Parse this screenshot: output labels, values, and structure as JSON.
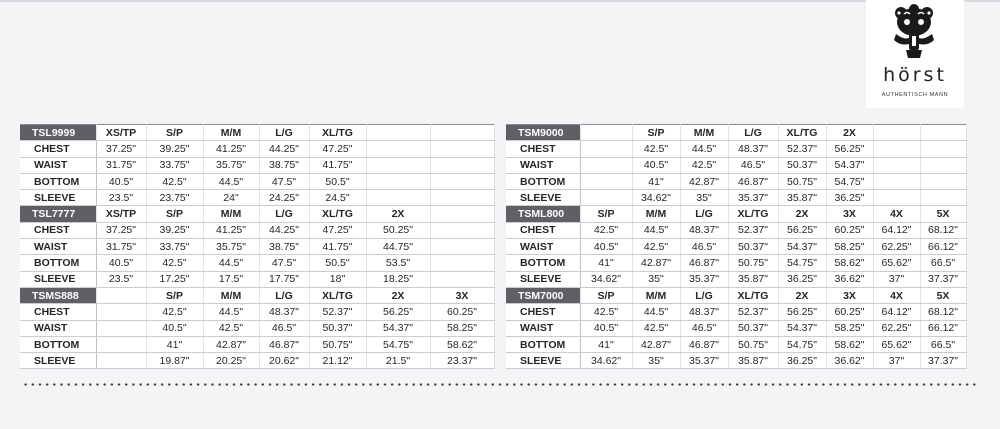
{
  "brand": {
    "name": "hörst",
    "tagline": "AUTHENTISCH MANN",
    "logo_icon": "ornamental-crest-icon"
  },
  "left_table": [
    {
      "model": "TSL9999",
      "sizes": [
        "XS/TP",
        "S/P",
        "M/M",
        "L/G",
        "XL/TG",
        "",
        ""
      ],
      "rows": [
        {
          "label": "CHEST",
          "values": [
            "37.25\"",
            "39.25\"",
            "41.25\"",
            "44.25\"",
            "47.25\"",
            "",
            ""
          ]
        },
        {
          "label": "WAIST",
          "values": [
            "31.75\"",
            "33.75\"",
            "35.75\"",
            "38.75\"",
            "41.75\"",
            "",
            ""
          ]
        },
        {
          "label": "BOTTOM",
          "values": [
            "40.5\"",
            "42.5\"",
            "44.5\"",
            "47.5\"",
            "50.5\"",
            "",
            ""
          ]
        },
        {
          "label": "SLEEVE",
          "values": [
            "23.5\"",
            "23.75\"",
            "24\"",
            "24.25\"",
            "24.5\"",
            "",
            ""
          ]
        }
      ]
    },
    {
      "model": "TSL7777",
      "sizes": [
        "XS/TP",
        "S/P",
        "M/M",
        "L/G",
        "XL/TG",
        "2X",
        ""
      ],
      "rows": [
        {
          "label": "CHEST",
          "values": [
            "37.25\"",
            "39.25\"",
            "41.25\"",
            "44.25\"",
            "47.25\"",
            "50.25\"",
            ""
          ]
        },
        {
          "label": "WAIST",
          "values": [
            "31.75\"",
            "33.75\"",
            "35.75\"",
            "38.75\"",
            "41.75\"",
            "44.75\"",
            ""
          ]
        },
        {
          "label": "BOTTOM",
          "values": [
            "40.5\"",
            "42.5\"",
            "44.5\"",
            "47.5\"",
            "50.5\"",
            "53.5\"",
            ""
          ]
        },
        {
          "label": "SLEEVE",
          "values": [
            "23.5\"",
            "17.25\"",
            "17.5\"",
            "17.75\"",
            "18\"",
            "18.25\"",
            ""
          ]
        }
      ]
    },
    {
      "model": "TSMS888",
      "sizes": [
        "",
        "S/P",
        "M/M",
        "L/G",
        "XL/TG",
        "2X",
        "3X"
      ],
      "rows": [
        {
          "label": "CHEST",
          "values": [
            "",
            "42.5\"",
            "44.5\"",
            "48.37\"",
            "52.37\"",
            "56.25\"",
            "60.25\""
          ]
        },
        {
          "label": "WAIST",
          "values": [
            "",
            "40.5\"",
            "42.5\"",
            "46.5\"",
            "50.37\"",
            "54.37\"",
            "58.25\""
          ]
        },
        {
          "label": "BOTTOM",
          "values": [
            "",
            "41\"",
            "42.87\"",
            "46.87\"",
            "50.75\"",
            "54.75\"",
            "58.62\""
          ]
        },
        {
          "label": "SLEEVE",
          "values": [
            "",
            "19.87\"",
            "20.25\"",
            "20.62\"",
            "21.12\"",
            "21.5\"",
            "23.37\""
          ]
        }
      ]
    }
  ],
  "right_table": [
    {
      "model": "TSM9000",
      "sizes": [
        "",
        "S/P",
        "M/M",
        "L/G",
        "XL/TG",
        "2X",
        "",
        ""
      ],
      "rows": [
        {
          "label": "CHEST",
          "values": [
            "",
            "42.5\"",
            "44.5\"",
            "48.37\"",
            "52.37\"",
            "56.25\"",
            "",
            ""
          ]
        },
        {
          "label": "WAIST",
          "values": [
            "",
            "40.5\"",
            "42.5\"",
            "46.5\"",
            "50.37\"",
            "54.37\"",
            "",
            ""
          ]
        },
        {
          "label": "BOTTOM",
          "values": [
            "",
            "41\"",
            "42.87\"",
            "46.87\"",
            "50.75\"",
            "54.75\"",
            "",
            ""
          ]
        },
        {
          "label": "SLEEVE",
          "values": [
            "",
            "34.62\"",
            "35\"",
            "35.37\"",
            "35.87\"",
            "36.25\"",
            "",
            ""
          ]
        }
      ]
    },
    {
      "model": "TSML800",
      "sizes": [
        "S/P",
        "M/M",
        "L/G",
        "XL/TG",
        "2X",
        "3X",
        "4X",
        "5X"
      ],
      "rows": [
        {
          "label": "CHEST",
          "values": [
            "42.5\"",
            "44.5\"",
            "48.37\"",
            "52.37\"",
            "56.25\"",
            "60.25\"",
            "64.12\"",
            "68.12\""
          ]
        },
        {
          "label": "WAIST",
          "values": [
            "40.5\"",
            "42.5\"",
            "46.5\"",
            "50.37\"",
            "54.37\"",
            "58.25\"",
            "62.25\"",
            "66.12\""
          ]
        },
        {
          "label": "BOTTOM",
          "values": [
            "41\"",
            "42.87\"",
            "46.87\"",
            "50.75\"",
            "54.75\"",
            "58.62\"",
            "65.62\"",
            "66.5\""
          ]
        },
        {
          "label": "SLEEVE",
          "values": [
            "34.62\"",
            "35\"",
            "35.37\"",
            "35.87\"",
            "36.25\"",
            "36.62\"",
            "37\"",
            "37.37\""
          ]
        }
      ]
    },
    {
      "model": "TSM7000",
      "sizes": [
        "S/P",
        "M/M",
        "L/G",
        "XL/TG",
        "2X",
        "3X",
        "4X",
        "5X"
      ],
      "rows": [
        {
          "label": "CHEST",
          "values": [
            "42.5\"",
            "44.5\"",
            "48.37\"",
            "52.37\"",
            "56.25\"",
            "60.25\"",
            "64.12\"",
            "68.12\""
          ]
        },
        {
          "label": "WAIST",
          "values": [
            "40.5\"",
            "42.5\"",
            "46.5\"",
            "50.37\"",
            "54.37\"",
            "58.25\"",
            "62.25\"",
            "66.12\""
          ]
        },
        {
          "label": "BOTTOM",
          "values": [
            "41\"",
            "42.87\"",
            "46.87\"",
            "50.75\"",
            "54.75\"",
            "58.62\"",
            "65.62\"",
            "66.5\""
          ]
        },
        {
          "label": "SLEEVE",
          "values": [
            "34.62\"",
            "35\"",
            "35.37\"",
            "35.87\"",
            "36.25\"",
            "36.62\"",
            "37\"",
            "37.37\""
          ]
        }
      ]
    }
  ]
}
